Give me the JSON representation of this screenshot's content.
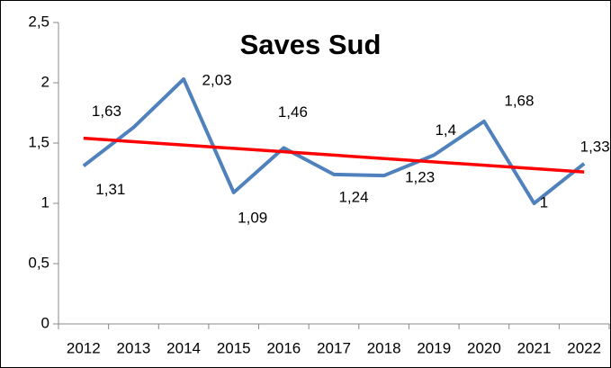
{
  "chart_data": {
    "type": "line",
    "title": "Saves Sud",
    "categories": [
      "2012",
      "2013",
      "2014",
      "2015",
      "2016",
      "2017",
      "2018",
      "2019",
      "2020",
      "2021",
      "2022"
    ],
    "series": [
      {
        "color": "#4f81bd",
        "values": [
          1.31,
          1.63,
          2.03,
          1.09,
          1.46,
          1.24,
          1.23,
          1.4,
          1.68,
          1,
          1.33
        ],
        "value_labels": [
          "1,31",
          "1,63",
          "2,03",
          "1,09",
          "1,46",
          "1,24",
          "1,23",
          "1,4",
          "1,68",
          "1",
          "1,33"
        ]
      }
    ],
    "trend": {
      "color": "#ff0000",
      "start": 1.54,
      "end": 1.26
    },
    "ylim": [
      0,
      2.5
    ],
    "yticks": [
      {
        "value": 0,
        "label": "0"
      },
      {
        "value": 0.5,
        "label": "0,5"
      },
      {
        "value": 1,
        "label": "1"
      },
      {
        "value": 1.5,
        "label": "1,5"
      },
      {
        "value": 2,
        "label": "2"
      },
      {
        "value": 2.5,
        "label": "2,5"
      }
    ]
  }
}
